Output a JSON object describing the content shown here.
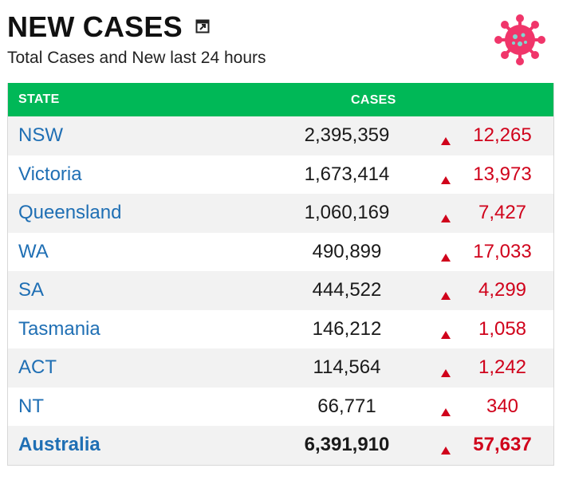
{
  "header": {
    "title": "NEW CASES",
    "subtitle": "Total Cases and New last 24 hours",
    "popout_icon": "external-link-icon",
    "virus_icon": "virus-icon"
  },
  "colors": {
    "header_bg": "#00b857",
    "state_text": "#1f6fb4",
    "new_cases_text": "#d0021b",
    "arrow": "#d0021b",
    "virus": "#f0356a"
  },
  "table": {
    "columns": {
      "state": "STATE",
      "cases": "CASES"
    },
    "rows": [
      {
        "state": "NSW",
        "cases": "2,395,359",
        "new": "12,265"
      },
      {
        "state": "Victoria",
        "cases": "1,673,414",
        "new": "13,973"
      },
      {
        "state": "Queensland",
        "cases": "1,060,169",
        "new": "7,427"
      },
      {
        "state": "WA",
        "cases": "490,899",
        "new": "17,033"
      },
      {
        "state": "SA",
        "cases": "444,522",
        "new": "4,299"
      },
      {
        "state": "Tasmania",
        "cases": "146,212",
        "new": "1,058"
      },
      {
        "state": "ACT",
        "cases": "114,564",
        "new": "1,242"
      },
      {
        "state": "NT",
        "cases": "66,771",
        "new": "340"
      },
      {
        "state": "Australia",
        "cases": "6,391,910",
        "new": "57,637"
      }
    ]
  }
}
